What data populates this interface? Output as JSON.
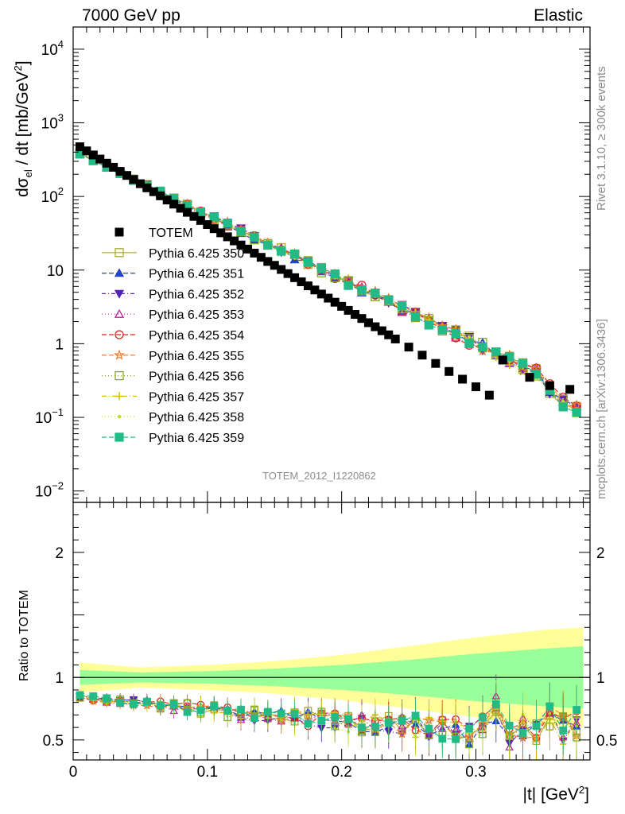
{
  "header": {
    "left": "7000 GeV pp",
    "right": "Elastic"
  },
  "side_labels": {
    "top": "Rivet 3.1.10, ≥ 300k events",
    "bottom": "mcplots.cern.ch [arXiv:1306.3436]"
  },
  "analysis_tag": "TOTEM_2012_I1220862",
  "chart_data": [
    {
      "type": "scatter",
      "panel": "main",
      "ylabel": "dσel / dt [mb/GeV2]",
      "ylabel_parts": {
        "main": "dσ",
        "sub": "el",
        "rest": " / dt [mb/GeV",
        "sup": "2",
        "end": "]"
      },
      "yscale": "log",
      "xlim": [
        0,
        0.385
      ],
      "ylim": [
        0.007,
        20000
      ],
      "ytick_labels": [
        {
          "value": 0.01,
          "base": "10",
          "exp": "−2"
        },
        {
          "value": 0.1,
          "base": "10",
          "exp": "−1"
        },
        {
          "value": 1,
          "base": "1",
          "exp": ""
        },
        {
          "value": 10,
          "base": "10",
          "exp": ""
        },
        {
          "value": 100,
          "base": "10",
          "exp": "2"
        },
        {
          "value": 1000,
          "base": "10",
          "exp": "3"
        },
        {
          "value": 10000,
          "base": "10",
          "exp": "4"
        }
      ],
      "legend_position": "middle-left",
      "reference": {
        "name": "TOTEM",
        "color": "#000000",
        "x": [
          0.005,
          0.01,
          0.015,
          0.02,
          0.025,
          0.03,
          0.035,
          0.04,
          0.045,
          0.05,
          0.055,
          0.06,
          0.065,
          0.07,
          0.075,
          0.08,
          0.085,
          0.09,
          0.095,
          0.1,
          0.105,
          0.11,
          0.115,
          0.12,
          0.125,
          0.13,
          0.135,
          0.14,
          0.145,
          0.15,
          0.155,
          0.16,
          0.165,
          0.17,
          0.175,
          0.18,
          0.185,
          0.19,
          0.195,
          0.2,
          0.205,
          0.21,
          0.215,
          0.22,
          0.225,
          0.23,
          0.235,
          0.24,
          0.25,
          0.26,
          0.27,
          0.28,
          0.29,
          0.3,
          0.31,
          0.32,
          0.34,
          0.355,
          0.37
        ],
        "y": [
          473,
          416,
          366,
          322,
          283,
          249,
          219,
          193,
          170,
          149,
          131,
          116,
          102,
          89.4,
          78.7,
          69.2,
          60.9,
          53.6,
          47.2,
          41.5,
          36.5,
          32.1,
          28.3,
          24.9,
          21.9,
          19.3,
          17.0,
          14.9,
          13.1,
          11.6,
          10.2,
          8.96,
          7.89,
          6.94,
          6.11,
          5.37,
          4.73,
          4.16,
          3.66,
          3.22,
          2.84,
          2.5,
          2.2,
          1.93,
          1.7,
          1.5,
          1.32,
          1.16,
          0.9,
          0.7,
          0.54,
          0.42,
          0.33,
          0.26,
          0.2,
          0.6,
          0.35,
          0.27,
          0.24
        ]
      },
      "mc_x": [
        0.005,
        0.015,
        0.025,
        0.035,
        0.045,
        0.055,
        0.065,
        0.075,
        0.085,
        0.095,
        0.105,
        0.115,
        0.125,
        0.135,
        0.145,
        0.155,
        0.165,
        0.175,
        0.185,
        0.195,
        0.205,
        0.215,
        0.225,
        0.235,
        0.245,
        0.255,
        0.265,
        0.275,
        0.285,
        0.295,
        0.305,
        0.315,
        0.325,
        0.335,
        0.345,
        0.355,
        0.365,
        0.375
      ],
      "mc_y_central": [
        380,
        311,
        254,
        208,
        170,
        139,
        114,
        93.1,
        76.1,
        62.3,
        51.0,
        41.7,
        34.1,
        27.9,
        22.8,
        18.7,
        15.3,
        12.5,
        10.2,
        8.36,
        6.84,
        5.6,
        4.58,
        3.75,
        3.06,
        2.51,
        2.05,
        1.68,
        1.37,
        1.12,
        0.92,
        0.75,
        0.61,
        0.5,
        0.41,
        0.25,
        0.16,
        0.13
      ],
      "series": [
        {
          "name": "Pythia 6.425 350",
          "color": "#aaaa33",
          "marker": "square-open",
          "dash": "",
          "scale": 1.01
        },
        {
          "name": "Pythia 6.425 351",
          "color": "#2244cc",
          "marker": "triangle-up",
          "dash": "6,3",
          "scale": 0.99
        },
        {
          "name": "Pythia 6.425 352",
          "color": "#5522bb",
          "marker": "triangle-down",
          "dash": "5,3,1,3",
          "scale": 1.02
        },
        {
          "name": "Pythia 6.425 353",
          "color": "#bb2299",
          "marker": "triangle-up-open",
          "dash": "1,3",
          "scale": 0.98
        },
        {
          "name": "Pythia 6.425 354",
          "color": "#dd2222",
          "marker": "circle-open",
          "dash": "6,3",
          "scale": 1.0
        },
        {
          "name": "Pythia 6.425 355",
          "color": "#ee7722",
          "marker": "star-open",
          "dash": "6,3",
          "scale": 1.01
        },
        {
          "name": "Pythia 6.425 356",
          "color": "#88aa22",
          "marker": "square-open",
          "dash": "1,3",
          "scale": 0.99
        },
        {
          "name": "Pythia 6.425 357",
          "color": "#ddbb11",
          "marker": "cross",
          "dash": "6,3,1,3",
          "scale": 1.0
        },
        {
          "name": "Pythia 6.425 358",
          "color": "#bbdd22",
          "marker": "dot",
          "dash": "1,3",
          "scale": 0.98
        },
        {
          "name": "Pythia 6.425 359",
          "color": "#22bb88",
          "marker": "square",
          "dash": "6,3",
          "scale": 1.0
        }
      ]
    },
    {
      "type": "line",
      "panel": "ratio",
      "ylabel": "Ratio to TOTEM",
      "xlabel": "|t| [GeV2]",
      "xlabel_parts": {
        "main": "|t| [GeV",
        "sup": "2",
        "end": "]"
      },
      "xlim": [
        0,
        0.385
      ],
      "ylim": [
        0.34,
        2.4
      ],
      "xtick_labels": [
        {
          "value": 0,
          "label": "0"
        },
        {
          "value": 0.1,
          "label": "0.1"
        },
        {
          "value": 0.2,
          "label": "0.2"
        },
        {
          "value": 0.3,
          "label": "0.3"
        }
      ],
      "ytick_labels": [
        {
          "value": 0.5,
          "label": "0.5"
        },
        {
          "value": 1,
          "label": "1"
        },
        {
          "value": 2,
          "label": "2"
        }
      ],
      "reference_line": 1.0,
      "band_x": [
        0.005,
        0.05,
        0.1,
        0.15,
        0.2,
        0.25,
        0.3,
        0.35,
        0.38
      ],
      "band_inner_halfwidth": [
        0.06,
        0.04,
        0.05,
        0.07,
        0.1,
        0.14,
        0.19,
        0.23,
        0.25
      ],
      "band_outer_halfwidth": [
        0.12,
        0.08,
        0.1,
        0.13,
        0.18,
        0.25,
        0.32,
        0.38,
        0.4
      ],
      "ratio_x": [
        0.005,
        0.015,
        0.025,
        0.035,
        0.045,
        0.055,
        0.065,
        0.075,
        0.085,
        0.095,
        0.105,
        0.115,
        0.125,
        0.135,
        0.145,
        0.155,
        0.165,
        0.175,
        0.185,
        0.195,
        0.205,
        0.215,
        0.225,
        0.235,
        0.245,
        0.255,
        0.265,
        0.275,
        0.285,
        0.295,
        0.305,
        0.315,
        0.325,
        0.335,
        0.345,
        0.355,
        0.365,
        0.375
      ],
      "ratio_central": [
        0.85,
        0.83,
        0.82,
        0.81,
        0.8,
        0.79,
        0.78,
        0.77,
        0.76,
        0.75,
        0.74,
        0.72,
        0.71,
        0.7,
        0.69,
        0.68,
        0.68,
        0.67,
        0.66,
        0.65,
        0.64,
        0.63,
        0.63,
        0.62,
        0.62,
        0.61,
        0.6,
        0.58,
        0.57,
        0.56,
        0.6,
        0.75,
        0.55,
        0.6,
        0.58,
        0.66,
        0.58,
        0.62
      ]
    }
  ]
}
